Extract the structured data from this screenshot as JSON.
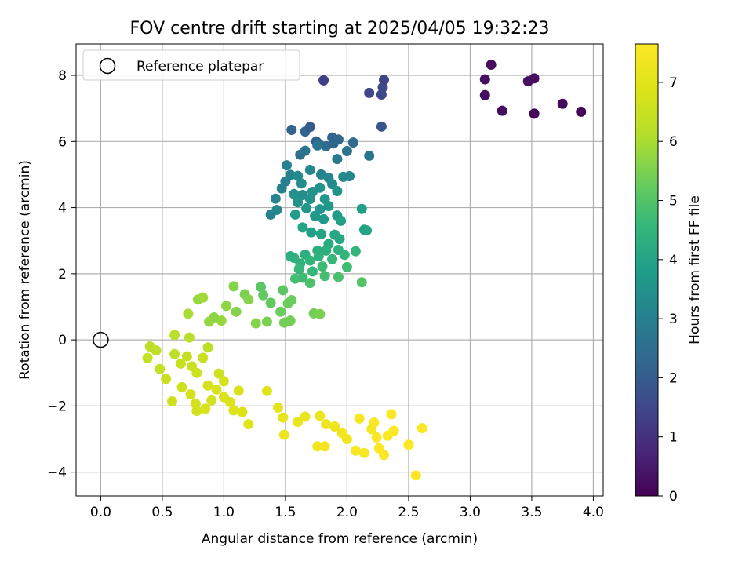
{
  "chart_data": {
    "type": "scatter",
    "title": "FOV centre drift starting at 2025/04/05 19:32:23",
    "xlabel": "Angular distance from reference (arcmin)",
    "ylabel": "Rotation from reference (arcmin)",
    "xlim": [
      -0.2,
      4.08
    ],
    "ylim": [
      -4.72,
      8.95
    ],
    "xticks": [
      "0.0",
      "0.5",
      "1.0",
      "1.5",
      "2.0",
      "2.5",
      "3.0",
      "3.5",
      "4.0"
    ],
    "yticks": [
      "−4",
      "−2",
      "0",
      "2",
      "4",
      "6",
      "8"
    ],
    "grid": true,
    "legend": {
      "placement": "top-left",
      "entries": [
        "Reference platepar"
      ]
    },
    "reference_point": {
      "x": 0.0,
      "y": 0.0
    },
    "colorbar": {
      "label": "Hours from first FF file",
      "min": 0,
      "max": 7.65,
      "ticks": [
        "0",
        "1",
        "2",
        "3",
        "4",
        "5",
        "6",
        "7"
      ],
      "colormap": "viridis"
    },
    "points": [
      [
        3.17,
        8.32,
        0.2
      ],
      [
        3.12,
        7.88,
        0.3
      ],
      [
        3.12,
        7.4,
        0.25
      ],
      [
        3.26,
        6.93,
        0.2
      ],
      [
        3.47,
        7.82,
        0.3
      ],
      [
        3.52,
        7.91,
        0.25
      ],
      [
        3.52,
        6.84,
        0.1
      ],
      [
        3.75,
        7.14,
        0.2
      ],
      [
        3.9,
        6.9,
        0.1
      ],
      [
        1.81,
        7.85,
        1.3
      ],
      [
        2.18,
        7.47,
        1.5
      ],
      [
        2.29,
        7.64,
        1.6
      ],
      [
        2.3,
        7.86,
        1.4
      ],
      [
        2.28,
        7.42,
        1.5
      ],
      [
        2.28,
        6.45,
        1.8
      ],
      [
        1.55,
        6.35,
        2.2
      ],
      [
        1.66,
        6.3,
        2.2
      ],
      [
        1.7,
        6.44,
        2.0
      ],
      [
        1.75,
        6.0,
        2.1
      ],
      [
        1.77,
        5.93,
        2.3
      ],
      [
        1.88,
        6.12,
        2.2
      ],
      [
        1.93,
        6.06,
        2.3
      ],
      [
        2.05,
        5.97,
        2.4
      ],
      [
        1.83,
        5.86,
        2.4
      ],
      [
        1.89,
        5.94,
        2.2
      ],
      [
        1.62,
        5.6,
        2.5
      ],
      [
        1.66,
        5.72,
        2.6
      ],
      [
        1.76,
        5.88,
        2.7
      ],
      [
        2.0,
        5.71,
        2.6
      ],
      [
        2.18,
        5.57,
        2.7
      ],
      [
        1.92,
        5.47,
        2.8
      ],
      [
        1.51,
        5.28,
        3.0
      ],
      [
        1.54,
        4.99,
        3.1
      ],
      [
        1.5,
        4.79,
        3.0
      ],
      [
        1.47,
        4.58,
        3.0
      ],
      [
        1.42,
        4.27,
        3.1
      ],
      [
        1.38,
        3.79,
        3.1
      ],
      [
        1.43,
        3.93,
        3.2
      ],
      [
        1.6,
        4.96,
        3.3
      ],
      [
        1.7,
        5.14,
        3.2
      ],
      [
        1.79,
        5.0,
        3.1
      ],
      [
        1.85,
        4.9,
        3.2
      ],
      [
        1.97,
        4.93,
        3.3
      ],
      [
        2.02,
        4.95,
        3.2
      ],
      [
        1.63,
        4.73,
        3.4
      ],
      [
        1.57,
        4.41,
        3.5
      ],
      [
        1.64,
        4.38,
        3.4
      ],
      [
        1.72,
        4.48,
        3.5
      ],
      [
        1.78,
        4.6,
        3.5
      ],
      [
        1.88,
        4.71,
        3.3
      ],
      [
        1.92,
        4.5,
        3.5
      ],
      [
        1.82,
        4.26,
        3.6
      ],
      [
        1.7,
        4.26,
        3.5
      ],
      [
        1.6,
        4.16,
        3.5
      ],
      [
        1.67,
        3.98,
        3.6
      ],
      [
        1.78,
        3.95,
        3.6
      ],
      [
        1.85,
        4.05,
        3.7
      ],
      [
        1.74,
        3.75,
        3.7
      ],
      [
        1.81,
        3.65,
        3.7
      ],
      [
        1.92,
        3.76,
        3.8
      ],
      [
        1.95,
        3.6,
        3.9
      ],
      [
        2.12,
        3.96,
        3.9
      ],
      [
        2.14,
        3.33,
        3.9
      ],
      [
        2.16,
        3.31,
        4.0
      ],
      [
        1.58,
        3.79,
        3.8
      ],
      [
        1.64,
        3.4,
        4.0
      ],
      [
        1.71,
        3.25,
        3.9
      ],
      [
        1.79,
        3.2,
        4.0
      ],
      [
        1.9,
        3.18,
        4.1
      ],
      [
        1.94,
        3.05,
        4.1
      ],
      [
        1.85,
        2.9,
        4.2
      ],
      [
        1.76,
        2.7,
        4.3
      ],
      [
        1.66,
        2.58,
        4.3
      ],
      [
        1.57,
        2.48,
        4.4
      ],
      [
        1.54,
        2.53,
        4.3
      ],
      [
        1.62,
        2.31,
        4.4
      ],
      [
        1.7,
        2.4,
        4.5
      ],
      [
        1.77,
        2.53,
        4.4
      ],
      [
        1.83,
        2.7,
        4.3
      ],
      [
        1.93,
        2.72,
        4.4
      ],
      [
        1.98,
        2.57,
        4.5
      ],
      [
        2.07,
        2.68,
        4.5
      ],
      [
        1.88,
        2.44,
        4.6
      ],
      [
        1.8,
        2.22,
        4.7
      ],
      [
        1.72,
        2.07,
        4.6
      ],
      [
        1.64,
        1.88,
        4.7
      ],
      [
        1.58,
        1.85,
        4.8
      ],
      [
        1.7,
        1.72,
        4.9
      ],
      [
        1.82,
        1.93,
        4.8
      ],
      [
        1.93,
        1.9,
        4.9
      ],
      [
        2.0,
        2.2,
        4.7
      ],
      [
        2.12,
        1.74,
        5.0
      ],
      [
        1.61,
        2.14,
        4.6
      ],
      [
        1.3,
        1.6,
        5.1
      ],
      [
        1.32,
        1.35,
        5.2
      ],
      [
        1.38,
        1.12,
        5.2
      ],
      [
        1.48,
        1.5,
        5.1
      ],
      [
        1.52,
        1.1,
        5.3
      ],
      [
        1.55,
        1.2,
        5.3
      ],
      [
        1.46,
        0.85,
        5.3
      ],
      [
        1.49,
        0.52,
        5.4
      ],
      [
        1.54,
        0.58,
        5.4
      ],
      [
        1.35,
        0.55,
        5.5
      ],
      [
        1.26,
        0.5,
        5.6
      ],
      [
        1.73,
        0.8,
        5.4
      ],
      [
        1.78,
        0.78,
        5.5
      ],
      [
        1.08,
        1.62,
        5.6
      ],
      [
        1.17,
        1.38,
        5.5
      ],
      [
        1.2,
        1.22,
        5.6
      ],
      [
        1.02,
        1.03,
        5.7
      ],
      [
        1.1,
        0.85,
        5.6
      ],
      [
        0.98,
        0.58,
        5.8
      ],
      [
        0.88,
        0.55,
        5.8
      ],
      [
        0.92,
        0.68,
        5.7
      ],
      [
        0.79,
        1.22,
        5.8
      ],
      [
        0.83,
        1.28,
        5.9
      ],
      [
        0.71,
        0.79,
        6.0
      ],
      [
        0.4,
        -0.2,
        6.3
      ],
      [
        0.45,
        -0.32,
        6.3
      ],
      [
        0.38,
        -0.55,
        6.4
      ],
      [
        0.48,
        -0.88,
        6.4
      ],
      [
        0.53,
        -1.18,
        6.5
      ],
      [
        0.6,
        -0.43,
        6.3
      ],
      [
        0.65,
        -0.72,
        6.5
      ],
      [
        0.7,
        -0.5,
        6.4
      ],
      [
        0.74,
        -0.8,
        6.5
      ],
      [
        0.83,
        -0.54,
        6.5
      ],
      [
        0.87,
        -0.23,
        6.3
      ],
      [
        0.6,
        0.15,
        6.2
      ],
      [
        0.72,
        0.07,
        6.2
      ],
      [
        0.66,
        -1.43,
        6.6
      ],
      [
        0.58,
        -1.86,
        6.6
      ],
      [
        0.73,
        -1.65,
        6.7
      ],
      [
        0.77,
        -1.93,
        6.7
      ],
      [
        0.78,
        -2.15,
        6.7
      ],
      [
        0.85,
        -2.08,
        6.8
      ],
      [
        0.9,
        -1.83,
        6.7
      ],
      [
        0.94,
        -1.5,
        6.8
      ],
      [
        1.0,
        -1.73,
        6.8
      ],
      [
        1.05,
        -1.88,
        6.9
      ],
      [
        1.08,
        -2.13,
        6.9
      ],
      [
        1.15,
        -2.18,
        6.9
      ],
      [
        1.2,
        -2.55,
        7.0
      ],
      [
        1.12,
        -1.54,
        6.8
      ],
      [
        0.87,
        -1.38,
        6.7
      ],
      [
        0.96,
        -1.02,
        6.6
      ],
      [
        1.0,
        -1.25,
        6.7
      ],
      [
        0.78,
        -1.0,
        6.6
      ],
      [
        1.35,
        -1.55,
        7.0
      ],
      [
        1.44,
        -2.05,
        7.1
      ],
      [
        1.48,
        -2.35,
        7.1
      ],
      [
        1.49,
        -2.87,
        7.2
      ],
      [
        1.6,
        -2.48,
        7.2
      ],
      [
        1.66,
        -2.32,
        7.2
      ],
      [
        1.78,
        -2.3,
        7.3
      ],
      [
        1.83,
        -2.55,
        7.3
      ],
      [
        1.76,
        -3.22,
        7.3
      ],
      [
        1.82,
        -3.22,
        7.4
      ],
      [
        1.9,
        -2.62,
        7.3
      ],
      [
        1.96,
        -2.82,
        7.4
      ],
      [
        2.0,
        -3.0,
        7.4
      ],
      [
        2.07,
        -3.35,
        7.5
      ],
      [
        2.1,
        -2.38,
        7.5
      ],
      [
        2.14,
        -3.42,
        7.5
      ],
      [
        2.2,
        -2.7,
        7.5
      ],
      [
        2.22,
        -2.5,
        7.6
      ],
      [
        2.24,
        -2.95,
        7.6
      ],
      [
        2.26,
        -3.28,
        7.6
      ],
      [
        2.3,
        -3.48,
        7.6
      ],
      [
        2.33,
        -2.9,
        7.6
      ],
      [
        2.36,
        -2.25,
        7.6
      ],
      [
        2.38,
        -2.75,
        7.6
      ],
      [
        2.5,
        -3.17,
        7.6
      ],
      [
        2.56,
        -4.1,
        7.65
      ],
      [
        2.61,
        -2.67,
        7.6
      ]
    ]
  }
}
